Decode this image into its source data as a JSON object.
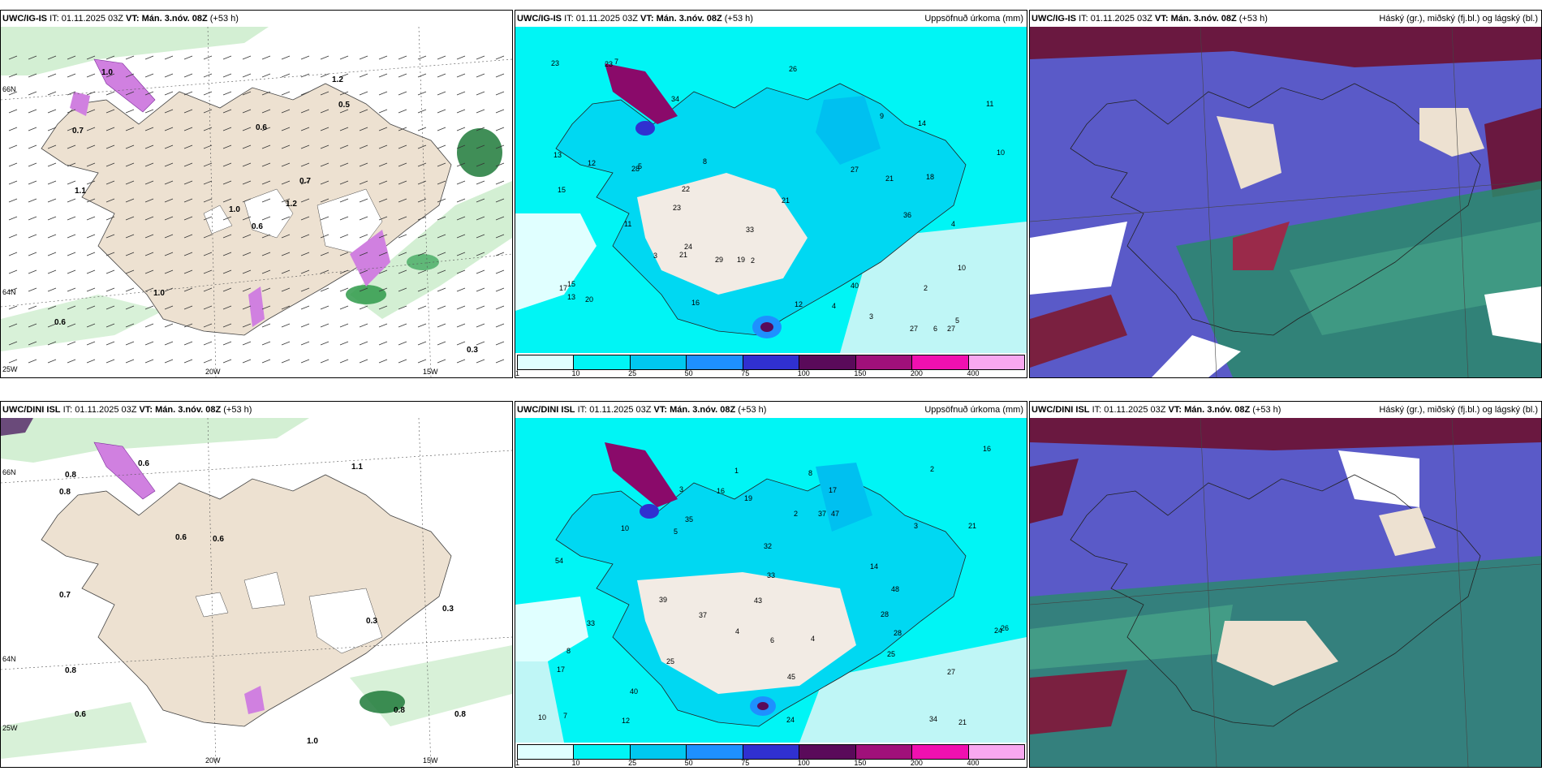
{
  "panels": {
    "r1c1": {
      "model": "UWC/IG-IS",
      "it": "IT: 01.11.2025 03Z",
      "vt_label": "VT:",
      "vt": "Mán. 3.nóv. 08Z",
      "offset": "(+53 h)",
      "right_title": ""
    },
    "r1c2": {
      "model": "UWC/IG-IS",
      "it": "IT: 01.11.2025 03Z",
      "vt_label": "VT:",
      "vt": "Mán. 3.nóv. 08Z",
      "offset": "(+53 h)",
      "right_title": "Uppsöfnuð úrkoma (mm)"
    },
    "r1c3": {
      "model": "UWC/IG-IS",
      "it": "IT: 01.11.2025 03Z",
      "vt_label": "VT:",
      "vt": "Mán. 3.nóv. 08Z",
      "offset": "(+53 h)",
      "right_title": "Háský (gr.), miðský (fj.bl.) og lágský (bl.)"
    },
    "r2c1": {
      "model": "UWC/DINI ISL",
      "it": "IT: 01.11.2025 03Z",
      "vt_label": "VT:",
      "vt": "Mán. 3.nóv. 08Z",
      "offset": "(+53 h)",
      "right_title": ""
    },
    "r2c2": {
      "model": "UWC/DINI ISL",
      "it": "IT: 01.11.2025 03Z",
      "vt_label": "VT:",
      "vt": "Mán. 3.nóv. 08Z",
      "offset": "(+53 h)",
      "right_title": "Uppsöfnuð úrkoma (mm)"
    },
    "r2c3": {
      "model": "UWC/DINI ISL",
      "it": "IT: 01.11.2025 03Z",
      "vt_label": "VT:",
      "vt": "Mán. 3.nóv. 08Z",
      "offset": "(+53 h)",
      "right_title": "Háský (gr.), miðský (fj.bl.) og lágský (bl.)"
    }
  },
  "precip_legend": {
    "ticks": [
      "1",
      "10",
      "25",
      "50",
      "75",
      "100",
      "150",
      "200",
      "400"
    ],
    "colors": [
      "#e0ffff",
      "#00f5f5",
      "#00c8f0",
      "#1e90ff",
      "#3030d0",
      "#5a0a5a",
      "#a0107a",
      "#f010b0",
      "#f8a8f0"
    ]
  },
  "wind_panel_labels": {
    "lat_top": "66N",
    "lat_bottom": "64N",
    "lon_left": "25W",
    "lon_20": "20W",
    "lon_15": "15W",
    "r1_values": [
      "0.6",
      "0.7",
      "1.0",
      "0.6",
      "0.7",
      "1.0",
      "1.2",
      "0.6",
      "0.5",
      "1.2",
      "1.0",
      "0.3",
      "1.1"
    ],
    "r2_values": [
      "0.3",
      "0.3",
      "0.6",
      "0.6",
      "0.6",
      "0.8",
      "0.8",
      "1.1",
      "0.6",
      "1.0",
      "0.8",
      "0.7",
      "0.8",
      "0.8"
    ]
  },
  "precip_values": {
    "r1": [
      "33",
      "28",
      "23",
      "36",
      "27",
      "34",
      "19",
      "23",
      "21",
      "21",
      "18",
      "26",
      "23",
      "27",
      "22",
      "40",
      "21",
      "10",
      "11",
      "8",
      "6",
      "5",
      "4",
      "3",
      "2",
      "27",
      "12",
      "15",
      "14",
      "17",
      "24",
      "29",
      "20",
      "10",
      "9",
      "13",
      "12",
      "7",
      "11",
      "16",
      "15",
      "5",
      "4",
      "3",
      "2",
      "13"
    ],
    "r2": [
      "32",
      "21",
      "28",
      "24",
      "48",
      "43",
      "37",
      "33",
      "34",
      "39",
      "19",
      "10",
      "17",
      "16",
      "27",
      "25",
      "35",
      "40",
      "24",
      "21",
      "45",
      "47",
      "54",
      "12",
      "17",
      "7",
      "6",
      "4",
      "5",
      "3",
      "2",
      "8",
      "1",
      "25",
      "28",
      "14",
      "33",
      "37",
      "26",
      "16",
      "10",
      "8",
      "4",
      "3",
      "2"
    ]
  },
  "colors": {
    "land_tan": "#ede1d1",
    "wind_green_light": "#c8ebc8",
    "wind_green_dark": "#1f7a3a",
    "wind_magenta": "#d080e0",
    "cloud_high": "#6a1840",
    "cloud_mid": "#5a5ac8",
    "cloud_low_green": "#2a8a6a",
    "precip_base": "#00f5f5"
  }
}
